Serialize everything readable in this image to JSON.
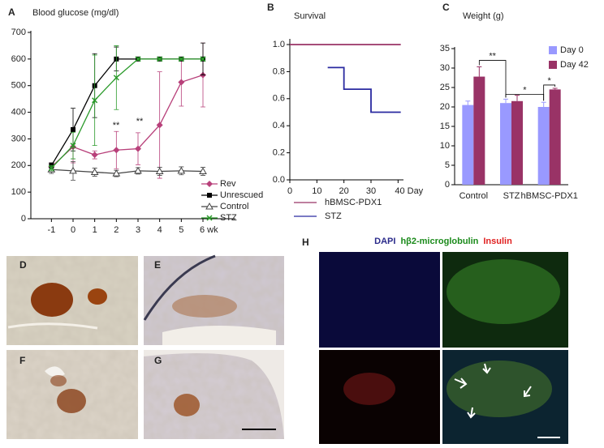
{
  "chart_data": [
    {
      "type": "line",
      "label": "A",
      "title": "Blood glucose (mg/dl)",
      "x": [
        -1,
        0,
        1,
        2,
        3,
        4,
        5,
        6
      ],
      "xlim": [
        -1.95,
        7.5
      ],
      "xticks": [
        -1,
        0,
        1,
        2,
        3,
        4,
        5,
        {
          "value": 6,
          "label": "6 wk"
        }
      ],
      "ylim": [
        0,
        700
      ],
      "yticks": [
        0,
        100,
        200,
        300,
        400,
        500,
        600,
        700
      ],
      "legend": "lower right",
      "series": [
        {
          "name": "Rev",
          "color": "#b8407a",
          "marker": "diamond",
          "values": [
            195,
            270,
            240,
            258,
            263,
            352,
            513,
            540
          ],
          "errors": [
            15,
            60,
            15,
            70,
            60,
            200,
            90,
            120
          ]
        },
        {
          "name": "Unrescued",
          "color": "#000000",
          "marker": "square",
          "values": [
            200,
            335,
            500,
            600,
            600,
            600,
            600,
            600
          ],
          "errors": [
            10,
            80,
            120,
            45,
            5,
            5,
            5,
            60
          ]
        },
        {
          "name": "Control",
          "color": "#444444",
          "marker": "triangle",
          "values": [
            185,
            180,
            175,
            170,
            180,
            178,
            180,
            178
          ],
          "errors": [
            15,
            35,
            15,
            12,
            12,
            15,
            15,
            15
          ]
        },
        {
          "name": "STZ",
          "color": "#2a9a2a",
          "marker": "x",
          "values": [
            190,
            275,
            445,
            530,
            600,
            600,
            600,
            600
          ],
          "errors": [
            10,
            50,
            170,
            120,
            5,
            5,
            5,
            5
          ]
        }
      ],
      "annotations": [
        "**",
        "**"
      ]
    },
    {
      "type": "line",
      "label": "B",
      "title": "Survival",
      "xlim": [
        0,
        42
      ],
      "xticks": [
        0,
        10,
        20,
        30,
        {
          "value": 40,
          "label": "40 Day"
        }
      ],
      "ylim": [
        0,
        1.03
      ],
      "yticks": [
        {
          "value": 0,
          "label": "0.0"
        },
        0.2,
        0.4,
        0.6,
        0.8,
        {
          "value": 1,
          "label": "1.0"
        }
      ],
      "legend": "bottom",
      "series": [
        {
          "name": "hBMSC-PDX1",
          "color": "#993366",
          "x": [
            0,
            41
          ],
          "values": [
            1,
            1
          ]
        },
        {
          "name": "STZ",
          "color": "#2a2aa0",
          "x": [
            14,
            20,
            20,
            30,
            30,
            41
          ],
          "values": [
            0.83,
            0.83,
            0.67,
            0.67,
            0.5,
            0.5
          ]
        }
      ]
    },
    {
      "type": "bar",
      "label": "C",
      "title": "Weight (g)",
      "categories": [
        "Control",
        "STZ",
        "hBMSC-PDX1"
      ],
      "ylim": [
        0,
        35
      ],
      "yticks": [
        0,
        5,
        10,
        15,
        20,
        25,
        30,
        35
      ],
      "legend": "upper right",
      "series": [
        {
          "name": "Day 0",
          "color": "#9999ff",
          "values": [
            20.5,
            21,
            20
          ],
          "errors": [
            1,
            1,
            1.2
          ]
        },
        {
          "name": "Day 42",
          "color": "#993366",
          "values": [
            27.8,
            21.5,
            24.5
          ],
          "errors": [
            2.5,
            1.5,
            0.3
          ]
        }
      ],
      "annotations": [
        "**",
        "*",
        "*"
      ]
    }
  ],
  "images": [
    {
      "label": "D"
    },
    {
      "label": "E"
    },
    {
      "label": "F"
    },
    {
      "label": "G"
    }
  ],
  "panel_h": {
    "label": "H",
    "stains": [
      {
        "text": "DAPI",
        "color": "#2a2a8a"
      },
      {
        "text": "hβ2-microglobulin",
        "color": "#1a8a1a"
      },
      {
        "text": "Insulin",
        "color": "#e02020"
      }
    ]
  }
}
